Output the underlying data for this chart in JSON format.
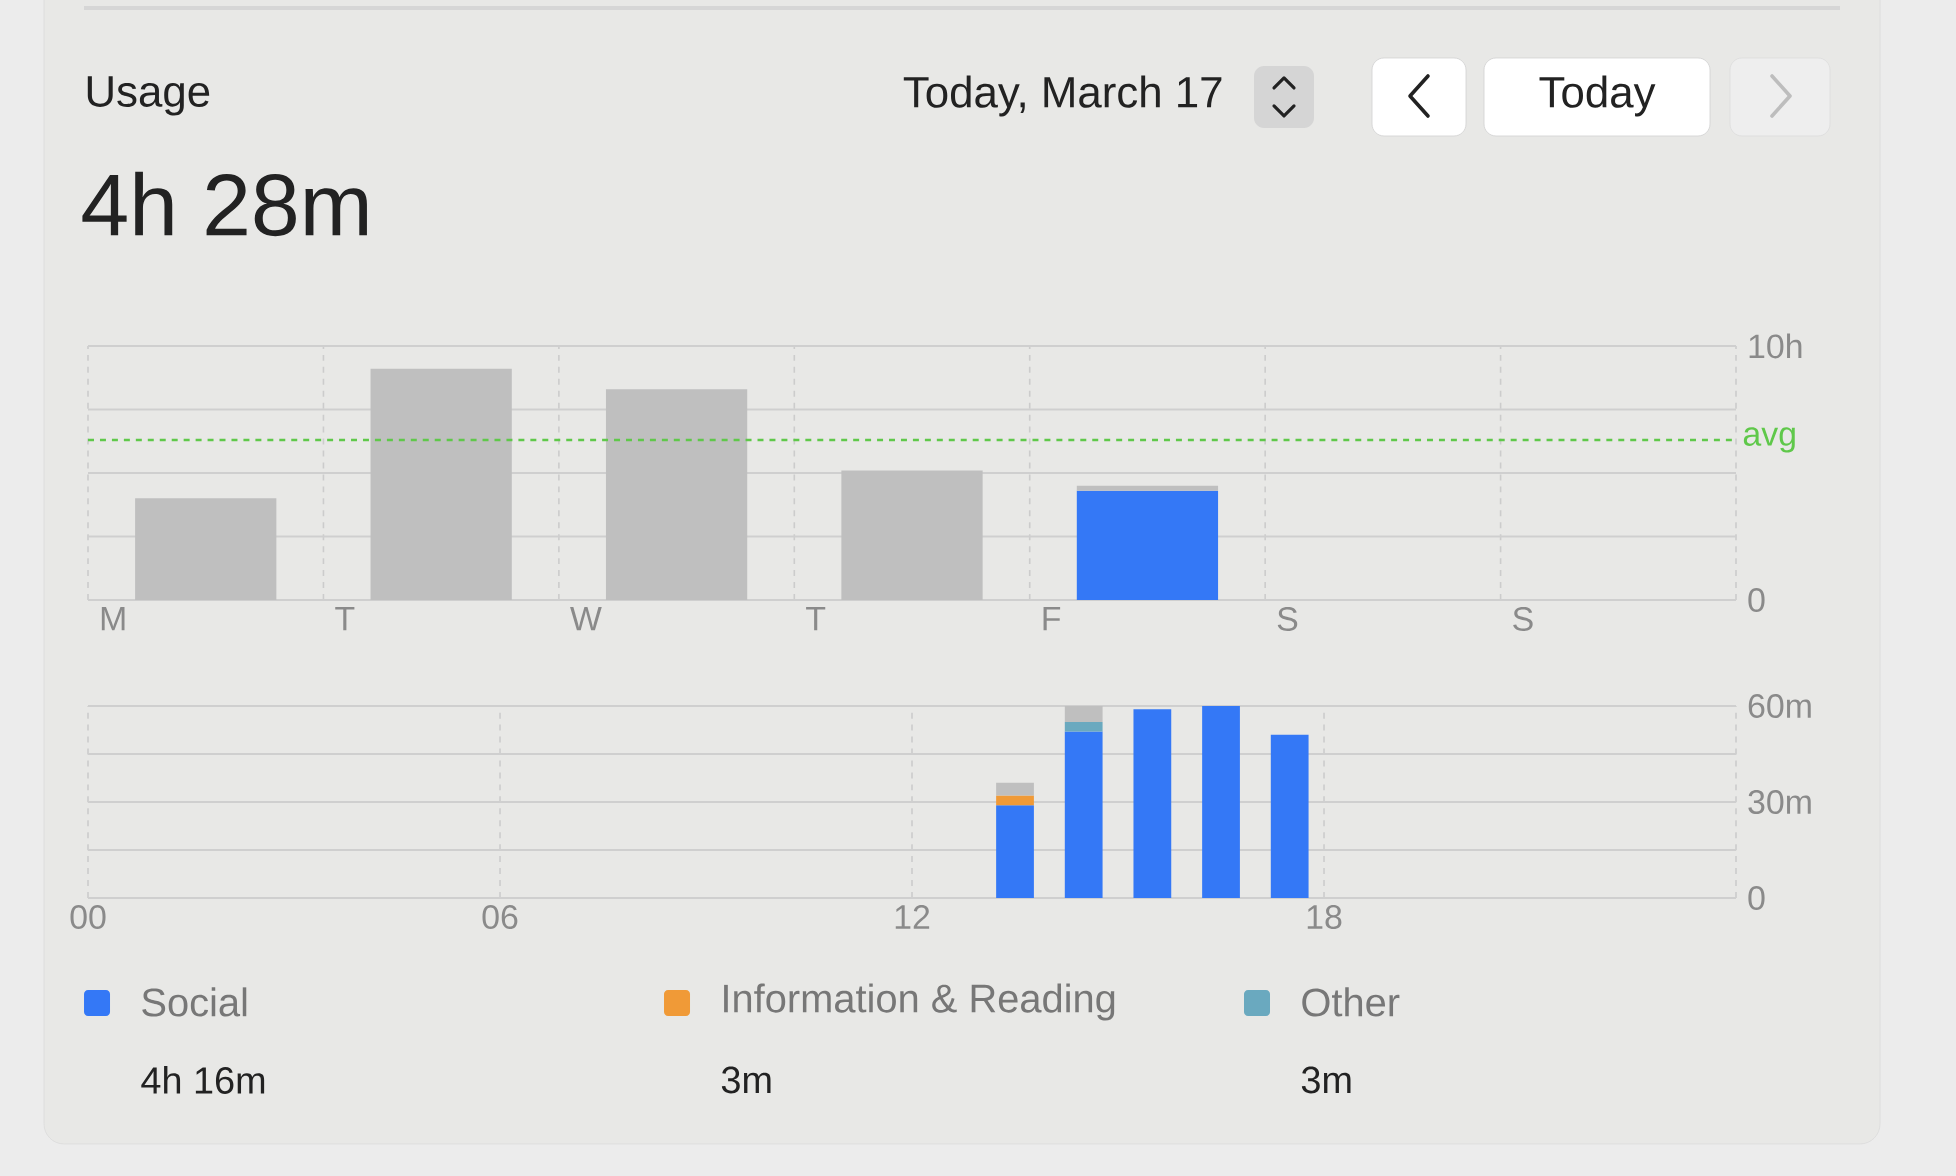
{
  "chart_data": [
    {
      "type": "bar",
      "title": "Usage",
      "subtitle": "4h 28m",
      "annotations": [
        "Today, March 17",
        "Today"
      ],
      "categories": [
        "M",
        "T",
        "W",
        "T",
        "F",
        "S",
        "S"
      ],
      "stacked": true,
      "series": [
        {
          "color": "#3478f6",
          "values": [
            null,
            null,
            null,
            null,
            4.3,
            null,
            null
          ]
        },
        {
          "color": "#bfbfbf",
          "values": [
            4.0,
            9.1,
            8.3,
            5.1,
            0.2,
            null,
            null
          ]
        }
      ],
      "ylim": [
        0,
        10
      ],
      "yticks": [
        0,
        {
          "value": 2.5,
          "label": null
        },
        {
          "value": 5,
          "label": null
        },
        {
          "value": 7.5,
          "label": null
        },
        {
          "value": 10,
          "label": "10h"
        }
      ],
      "ref_lines": [
        {
          "axis": "y",
          "value": 6.3,
          "label": "avg",
          "color": "#5fc84a",
          "line_style": "dashed"
        }
      ],
      "grid": true
    },
    {
      "type": "bar",
      "stacked": true,
      "annotations": [
        "4h 16m",
        "3m",
        "3m"
      ],
      "series": [
        {
          "name": "Social",
          "color": "#3478f6",
          "values": [
            29,
            52,
            59,
            60,
            51
          ]
        },
        {
          "name": "Information & Reading",
          "color": "#f09a37",
          "values": [
            3,
            null,
            null,
            null,
            null
          ]
        },
        {
          "name": "Other",
          "color": "#6aa9bf",
          "values": [
            null,
            3,
            null,
            null,
            null
          ]
        },
        {
          "color": "#bfbfbf",
          "values": [
            4,
            5,
            null,
            null,
            null
          ]
        }
      ],
      "x": [
        13.5,
        14.5,
        15.5,
        16.5,
        17.5
      ],
      "xlim": [
        0,
        24
      ],
      "xticks": [
        {
          "value": 0,
          "label": "00"
        },
        {
          "value": 6,
          "label": "06"
        },
        {
          "value": 12,
          "label": "12"
        },
        {
          "value": 18,
          "label": "18"
        },
        {
          "value": 24,
          "label": null
        }
      ],
      "ylim": [
        0,
        60
      ],
      "yticks": [
        0,
        {
          "value": 15,
          "label": null
        },
        {
          "value": 30,
          "label": "30m"
        },
        {
          "value": 45,
          "label": null
        },
        {
          "value": 60,
          "label": "60m"
        }
      ],
      "grid": true,
      "legend": "bottom"
    }
  ]
}
